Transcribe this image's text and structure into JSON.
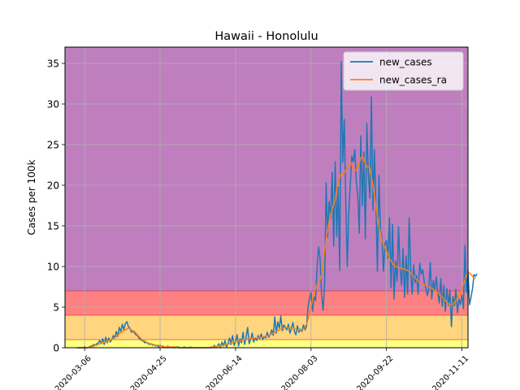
{
  "chart_data": {
    "type": "line",
    "title": "Hawaii - Honolulu",
    "xlabel": "",
    "ylabel": "Cases per 100k",
    "x_start": "2020-03-01",
    "xlim": [
      "2020-02-22",
      "2020-11-15"
    ],
    "ylim": [
      0,
      37
    ],
    "x_ticks": [
      "2020-03-06",
      "2020-04-25",
      "2020-06-14",
      "2020-08-03",
      "2020-09-22",
      "2020-11-11"
    ],
    "y_ticks": [
      0,
      5,
      10,
      15,
      20,
      25,
      30,
      35
    ],
    "grid": true,
    "legend_position": "top-right",
    "bands": [
      {
        "from": 0,
        "to": 1,
        "color": "#ffff80"
      },
      {
        "from": 1,
        "to": 4,
        "color": "#ffd580"
      },
      {
        "from": 4,
        "to": 7,
        "color": "#ff8080"
      },
      {
        "from": 7,
        "to": 37,
        "color": "#bf7fbf"
      }
    ],
    "band_line_color": "#d62728",
    "series": [
      {
        "name": "new_cases",
        "color": "#1f77b4",
        "values": [
          0,
          0,
          0,
          0,
          0,
          0.1,
          0,
          0,
          0.1,
          0.2,
          0.2,
          0.4,
          0.3,
          0.5,
          0.6,
          0.9,
          0.5,
          1.1,
          0.4,
          1.3,
          0.6,
          1.2,
          0.7,
          1.0,
          1.5,
          1.2,
          2.0,
          1.4,
          2.5,
          2.0,
          2.9,
          2.2,
          3.0,
          3.2,
          2.6,
          2.4,
          1.9,
          2.1,
          1.8,
          1.6,
          1.5,
          1.2,
          1.0,
          0.9,
          0.8,
          0.6,
          0.7,
          0.5,
          0.4,
          0.5,
          0.3,
          0.4,
          0.2,
          0.3,
          0.1,
          0.3,
          0.2,
          0.1,
          0.1,
          0,
          0.2,
          0.1,
          0,
          0.1,
          0,
          0,
          0.1,
          0.1,
          0,
          0,
          0,
          0.1,
          0,
          0,
          0,
          0.1,
          0,
          0,
          0,
          0,
          0,
          0,
          0,
          0,
          0,
          0,
          0,
          0,
          0,
          0.1,
          0,
          0.3,
          0,
          0.2,
          0.5,
          0,
          0.7,
          0.2,
          0.9,
          0.1,
          0.5,
          1.2,
          0.4,
          1.5,
          0.3,
          0.8,
          1.6,
          0.2,
          1.1,
          0.6,
          1.9,
          0.4,
          1.3,
          2.5,
          0.5,
          1.0,
          1.8,
          0.7,
          1.2,
          0.9,
          1.5,
          1.1,
          1.7,
          1.0,
          1.4,
          1.2,
          1.9,
          1.3,
          1.6,
          2.2,
          1.5,
          3.8,
          1.8,
          3.2,
          2.4,
          3.9,
          2.1,
          2.8,
          2.5,
          2.2,
          2.9,
          1.8,
          2.4,
          3.1,
          2.0,
          1.6,
          2.7,
          1.9,
          2.3,
          2.0,
          2.8,
          2.2,
          2.6,
          5.0,
          6.0,
          6.8,
          4.5,
          6.3,
          5.8,
          9.8,
          12.4,
          11.0,
          6.5,
          4.6,
          7.8,
          20.3,
          13.6,
          18.0,
          16.0,
          21.6,
          12.5,
          22.9,
          13.7,
          19.8,
          9.5,
          35.2,
          22.8,
          28.1,
          18.4,
          10.0,
          16.5,
          20.0,
          23.6,
          22.9,
          24.4,
          20.5,
          18.6,
          14.1,
          26.1,
          17.5,
          24.1,
          13.4,
          27.6,
          21.3,
          18.4,
          30.9,
          16.9,
          24.4,
          17.5,
          9.4,
          21.2,
          14.3,
          13.6,
          9.4,
          12.8,
          13.2,
          11.0,
          16.0,
          7.4,
          15.2,
          6.0,
          10.7,
          8.2,
          14.9,
          9.8,
          7.7,
          12.2,
          6.2,
          11.3,
          6.6,
          16.0,
          9.6,
          6.6,
          10.2,
          8.0,
          8.9,
          6.6,
          10.4,
          9.1,
          9.6,
          8.1,
          7.4,
          6.4,
          7.3,
          10.5,
          6.0,
          8.3,
          7.1,
          8.7,
          6.8,
          5.5,
          8.5,
          5.1,
          7.7,
          4.5,
          7.3,
          5.2,
          7.1,
          2.6,
          6.3,
          5.2,
          7.2,
          4.3,
          6.0,
          5.3,
          6.5,
          4.8,
          12.6,
          6.8,
          9.5,
          5.3,
          6.2,
          7.3,
          9.0,
          8.8,
          9.1
        ]
      },
      {
        "name": "new_cases_ra",
        "color": "#ff7f0e",
        "values": [
          0,
          0,
          0,
          0,
          0,
          0,
          0,
          0,
          0.1,
          0.1,
          0.1,
          0.2,
          0.3,
          0.3,
          0.4,
          0.5,
          0.6,
          0.6,
          0.7,
          0.7,
          0.8,
          0.9,
          0.9,
          1.0,
          1.1,
          1.2,
          1.4,
          1.6,
          1.7,
          1.9,
          2.0,
          2.1,
          2.2,
          2.3,
          2.4,
          2.3,
          2.2,
          2.1,
          2.0,
          1.8,
          1.6,
          1.4,
          1.2,
          1.0,
          0.9,
          0.8,
          0.7,
          0.6,
          0.5,
          0.5,
          0.4,
          0.4,
          0.3,
          0.3,
          0.3,
          0.2,
          0.2,
          0.2,
          0.1,
          0.1,
          0.1,
          0.1,
          0.1,
          0.1,
          0.1,
          0.1,
          0.1,
          0,
          0,
          0,
          0,
          0,
          0,
          0,
          0,
          0,
          0,
          0,
          0,
          0,
          0,
          0,
          0,
          0,
          0,
          0,
          0,
          0,
          0,
          0,
          0.1,
          0.1,
          0.1,
          0.2,
          0.2,
          0.2,
          0.3,
          0.3,
          0.3,
          0.4,
          0.4,
          0.5,
          0.6,
          0.6,
          0.7,
          0.7,
          0.8,
          0.8,
          0.9,
          0.9,
          1.0,
          1.0,
          1.0,
          1.1,
          1.1,
          1.1,
          1.1,
          1.2,
          1.2,
          1.2,
          1.2,
          1.3,
          1.3,
          1.3,
          1.4,
          1.4,
          1.5,
          1.5,
          1.6,
          1.7,
          1.8,
          1.9,
          2.0,
          2.1,
          2.2,
          2.3,
          2.4,
          2.4,
          2.5,
          2.5,
          2.5,
          2.5,
          2.4,
          2.4,
          2.3,
          2.3,
          2.2,
          2.2,
          2.2,
          2.2,
          2.3,
          2.5,
          2.9,
          3.5,
          4.2,
          5.0,
          5.8,
          6.6,
          7.2,
          7.8,
          8.0,
          8.3,
          9.0,
          10.5,
          12.0,
          13.4,
          14.5,
          15.6,
          16.3,
          17.1,
          17.6,
          18.3,
          19.5,
          20.4,
          21.0,
          21.4,
          21.3,
          21.5,
          21.8,
          22.1,
          22.6,
          22.8,
          22.5,
          22.0,
          21.7,
          21.9,
          22.3,
          22.8,
          23.3,
          23.6,
          23.2,
          22.6,
          22.2,
          22.3,
          22.0,
          21.0,
          19.9,
          18.7,
          17.4,
          16.1,
          15.0,
          14.0,
          13.2,
          12.7,
          12.3,
          11.9,
          11.5,
          11.0,
          10.7,
          10.4,
          10.2,
          10.0,
          9.9,
          9.9,
          9.8,
          9.8,
          9.7,
          9.7,
          9.6,
          9.5,
          9.4,
          9.2,
          9.0,
          8.8,
          8.6,
          8.4,
          8.2,
          8.0,
          7.9,
          7.8,
          7.8,
          7.7,
          7.6,
          7.5,
          7.4,
          7.3,
          7.2,
          7.0,
          6.9,
          6.8,
          6.6,
          6.4,
          6.2,
          6.0,
          5.8,
          5.6,
          5.4,
          5.3,
          5.3,
          5.4,
          5.6,
          5.8,
          6.1,
          6.4,
          6.8,
          7.3,
          7.8,
          8.4,
          8.9,
          9.2,
          9.2,
          9.0,
          8.8,
          8.6,
          8.5
        ]
      }
    ]
  }
}
